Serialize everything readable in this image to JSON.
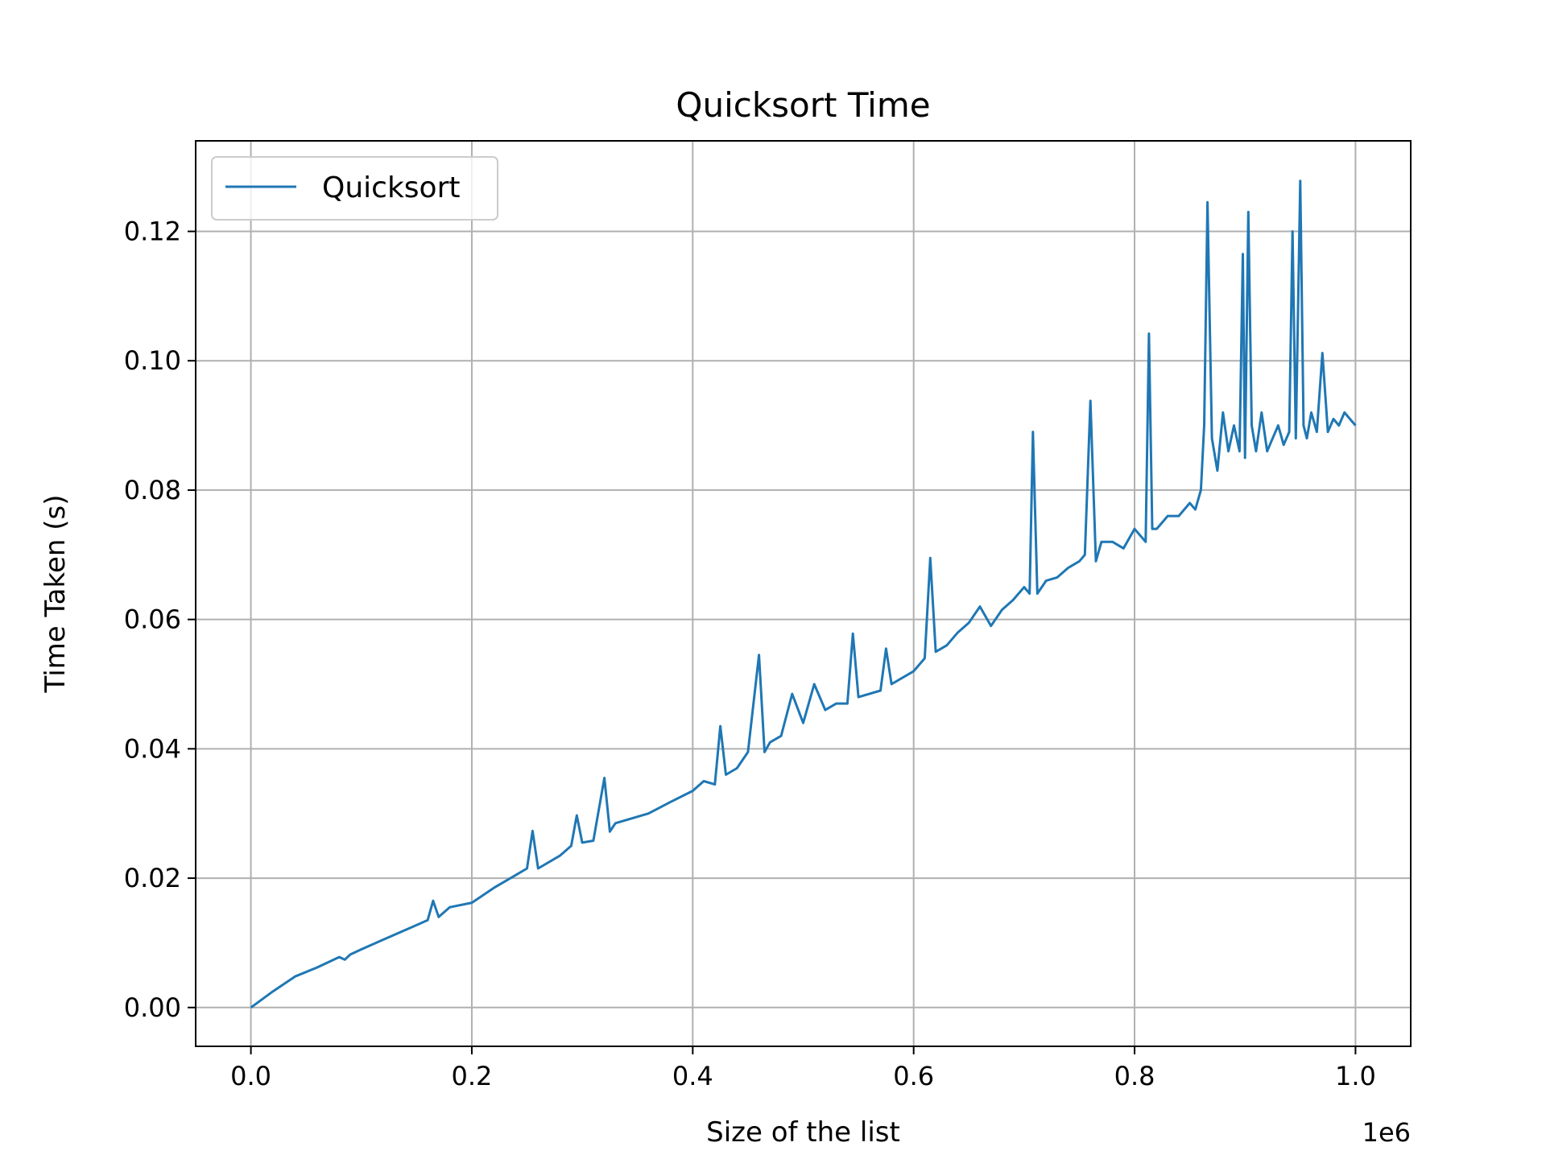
{
  "chart_data": {
    "type": "line",
    "title": "Quicksort Time",
    "xlabel": "Size of the list",
    "ylabel": "Time Taken (s)",
    "x_offset_label": "1e6",
    "xlim": [
      -0.05,
      1.05
    ],
    "ylim": [
      -0.006,
      0.134
    ],
    "x_ticks": [
      0.0,
      0.2,
      0.4,
      0.6,
      0.8,
      1.0
    ],
    "x_tick_labels": [
      "0.0",
      "0.2",
      "0.4",
      "0.6",
      "0.8",
      "1.0"
    ],
    "y_ticks": [
      0.0,
      0.02,
      0.04,
      0.06,
      0.08,
      0.1,
      0.12
    ],
    "y_tick_labels": [
      "0.00",
      "0.02",
      "0.04",
      "0.06",
      "0.08",
      "0.10",
      "0.12"
    ],
    "grid": true,
    "legend_position": "top-left",
    "series": [
      {
        "name": "Quicksort",
        "color": "#1f77b4",
        "x": [
          0.0,
          0.02,
          0.04,
          0.06,
          0.08,
          0.085,
          0.09,
          0.1,
          0.12,
          0.14,
          0.16,
          0.165,
          0.17,
          0.18,
          0.2,
          0.22,
          0.24,
          0.25,
          0.255,
          0.26,
          0.28,
          0.29,
          0.295,
          0.3,
          0.31,
          0.32,
          0.325,
          0.33,
          0.36,
          0.38,
          0.4,
          0.41,
          0.42,
          0.425,
          0.43,
          0.44,
          0.45,
          0.46,
          0.465,
          0.47,
          0.48,
          0.49,
          0.5,
          0.51,
          0.52,
          0.53,
          0.54,
          0.545,
          0.55,
          0.57,
          0.575,
          0.58,
          0.6,
          0.61,
          0.615,
          0.62,
          0.63,
          0.64,
          0.65,
          0.66,
          0.67,
          0.68,
          0.69,
          0.7,
          0.705,
          0.708,
          0.712,
          0.72,
          0.73,
          0.74,
          0.75,
          0.755,
          0.76,
          0.765,
          0.77,
          0.78,
          0.79,
          0.8,
          0.81,
          0.813,
          0.816,
          0.82,
          0.83,
          0.84,
          0.85,
          0.855,
          0.86,
          0.863,
          0.866,
          0.87,
          0.875,
          0.88,
          0.885,
          0.89,
          0.895,
          0.898,
          0.9,
          0.903,
          0.906,
          0.91,
          0.915,
          0.92,
          0.925,
          0.93,
          0.935,
          0.94,
          0.943,
          0.946,
          0.95,
          0.953,
          0.956,
          0.96,
          0.965,
          0.97,
          0.975,
          0.98,
          0.985,
          0.99,
          0.995,
          1.0
        ],
        "values": [
          0.0,
          0.0025,
          0.0048,
          0.0062,
          0.0078,
          0.0074,
          0.0082,
          0.009,
          0.0105,
          0.012,
          0.0135,
          0.0165,
          0.014,
          0.0155,
          0.0162,
          0.0185,
          0.0205,
          0.0215,
          0.0273,
          0.0215,
          0.0235,
          0.025,
          0.0297,
          0.0255,
          0.0258,
          0.0355,
          0.0272,
          0.0285,
          0.03,
          0.0318,
          0.0335,
          0.035,
          0.0345,
          0.0435,
          0.036,
          0.037,
          0.0395,
          0.0545,
          0.0395,
          0.041,
          0.042,
          0.0485,
          0.044,
          0.05,
          0.046,
          0.047,
          0.047,
          0.0578,
          0.048,
          0.049,
          0.0555,
          0.05,
          0.052,
          0.054,
          0.0695,
          0.055,
          0.056,
          0.058,
          0.0595,
          0.062,
          0.059,
          0.0615,
          0.063,
          0.065,
          0.064,
          0.089,
          0.064,
          0.066,
          0.0665,
          0.068,
          0.069,
          0.07,
          0.0938,
          0.069,
          0.072,
          0.072,
          0.071,
          0.074,
          0.072,
          0.1042,
          0.074,
          0.074,
          0.076,
          0.076,
          0.078,
          0.077,
          0.08,
          0.09,
          0.1245,
          0.088,
          0.083,
          0.092,
          0.086,
          0.09,
          0.086,
          0.1165,
          0.085,
          0.123,
          0.09,
          0.086,
          0.092,
          0.086,
          0.088,
          0.09,
          0.087,
          0.089,
          0.12,
          0.088,
          0.1278,
          0.09,
          0.088,
          0.092,
          0.089,
          0.1012,
          0.089,
          0.091,
          0.09,
          0.092,
          0.091,
          0.09
        ]
      }
    ]
  }
}
